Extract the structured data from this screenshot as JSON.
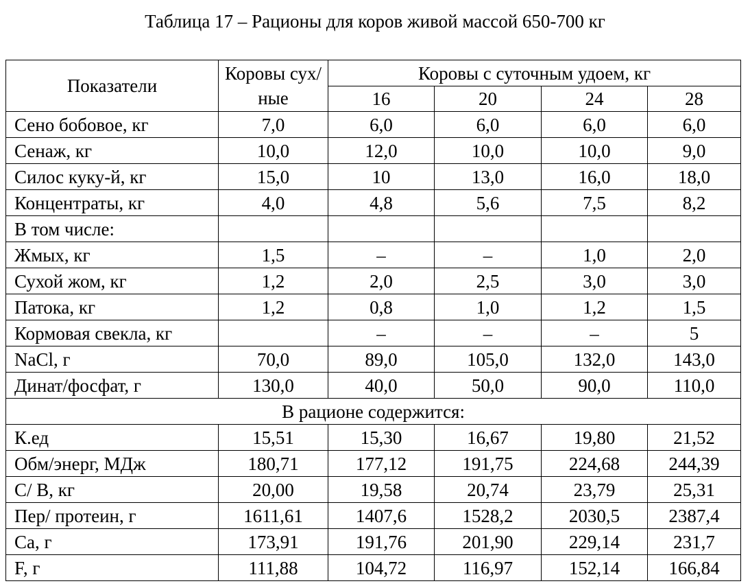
{
  "caption": "Таблица 17 – Рационы для коров живой массой 650-700 кг",
  "header": {
    "indicators": "Показатели",
    "dry_cows": "Коровы сух/ные",
    "milk_group": "Коровы с суточным удоем, кг",
    "yields": [
      "16",
      "20",
      "24",
      "28"
    ]
  },
  "rows": [
    {
      "name": "Сено бобовое, кг",
      "values": [
        "7,0",
        "6,0",
        "6,0",
        "6,0",
        "6,0"
      ]
    },
    {
      "name": "Сенаж, кг",
      "values": [
        "10,0",
        "12,0",
        "10,0",
        "10,0",
        "9,0"
      ]
    },
    {
      "name": "Силос куку-й, кг",
      "values": [
        "15,0",
        "10",
        "13,0",
        "16,0",
        "18,0"
      ]
    },
    {
      "name": "Концентраты, кг",
      "values": [
        "4,0",
        "4,8",
        "5,6",
        "7,5",
        "8,2"
      ]
    },
    {
      "name": "В том числе:",
      "values": [
        "",
        "",
        "",
        "",
        ""
      ]
    },
    {
      "name": "Жмых, кг",
      "values": [
        "1,5",
        "–",
        "–",
        "1,0",
        "2,0"
      ]
    },
    {
      "name": "Сухой жом, кг",
      "values": [
        "1,2",
        "2,0",
        "2,5",
        "3,0",
        "3,0"
      ]
    },
    {
      "name": "Патока, кг",
      "values": [
        "1,2",
        "0,8",
        "1,0",
        "1,2",
        "1,5"
      ]
    },
    {
      "name": "Кормовая свекла, кг",
      "values": [
        "",
        "–",
        "–",
        "–",
        "5"
      ]
    },
    {
      "name": "NaCl, г",
      "values": [
        "70,0",
        "89,0",
        "105,0",
        "132,0",
        "143,0"
      ]
    },
    {
      "name": "Динат/фосфат, г",
      "values": [
        "130,0",
        "40,0",
        "50,0",
        "90,0",
        "110,0"
      ]
    }
  ],
  "section_label": "В рационе содержится:",
  "content_rows": [
    {
      "name": "К.ед",
      "values": [
        "15,51",
        "15,30",
        "16,67",
        "19,80",
        "21,52"
      ]
    },
    {
      "name": "Обм/энерг, МДж",
      "values": [
        "180,71",
        "177,12",
        "191,75",
        "224,68",
        "244,39"
      ]
    },
    {
      "name": "С/ В, кг",
      "values": [
        "20,00",
        "19,58",
        "20,74",
        "23,79",
        "25,31"
      ]
    },
    {
      "name": "Пер/ протеин, г",
      "values": [
        "1611,61",
        "1407,6",
        "1528,2",
        "2030,5",
        "2387,4"
      ]
    },
    {
      "name": "Са, г",
      "values": [
        "173,91",
        "191,76",
        "201,90",
        "229,14",
        "231,7"
      ]
    },
    {
      "name": "F, г",
      "values": [
        "111,88",
        "104,72",
        "116,97",
        "152,14",
        "166,84"
      ]
    }
  ]
}
